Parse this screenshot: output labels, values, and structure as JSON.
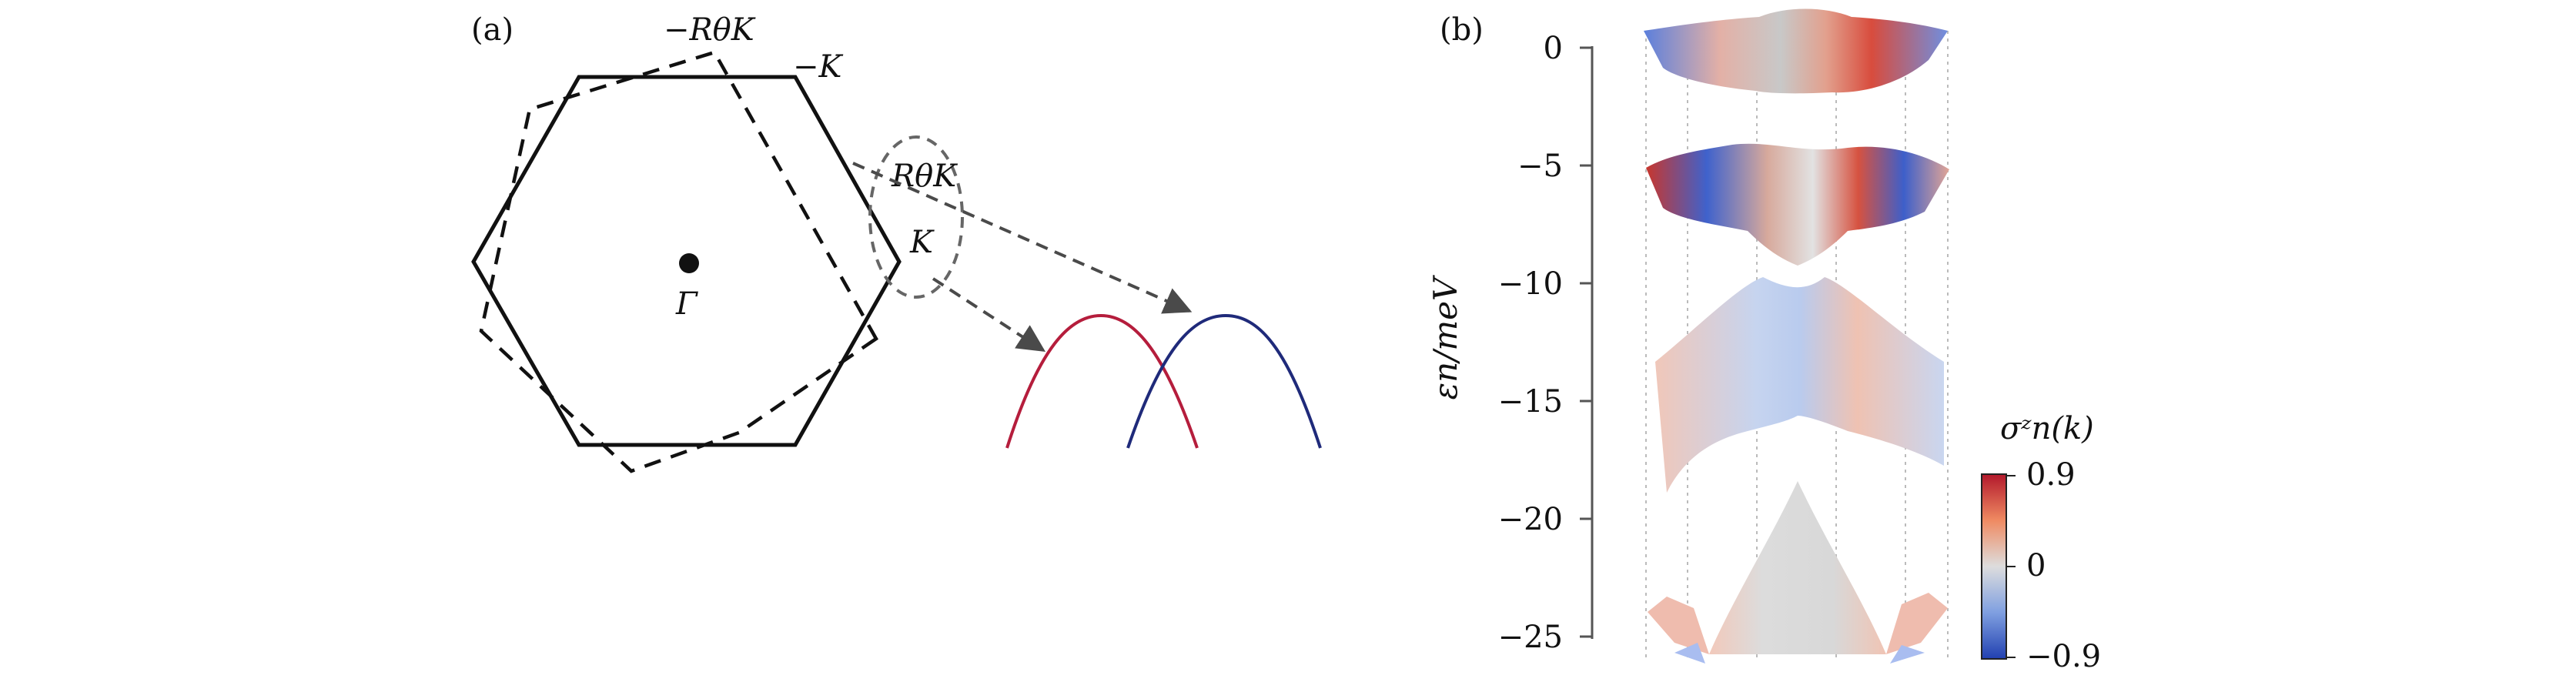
{
  "panel_a": {
    "label": "(a)",
    "labels": {
      "neg_r_theta_k": "−RθK",
      "neg_k": "−K",
      "r_theta_k": "RθK",
      "k": "K",
      "gamma": "Γ"
    },
    "colors": {
      "red_band": "#b51d3c",
      "blue_band": "#1f2a7a",
      "arrow": "#4a4a4a"
    }
  },
  "panel_b": {
    "label": "(b)",
    "ylabel": "εn/meV",
    "y_ticks": [
      "0",
      "−5",
      "−10",
      "−15",
      "−20",
      "−25"
    ],
    "colorbar": {
      "title": "σᶻn(k)",
      "max_label": "0.9",
      "mid_label": "0",
      "min_label": "−0.9",
      "colors": {
        "high": "#b2182b",
        "mid": "#dddddd",
        "low": "#2140b0"
      }
    }
  }
}
